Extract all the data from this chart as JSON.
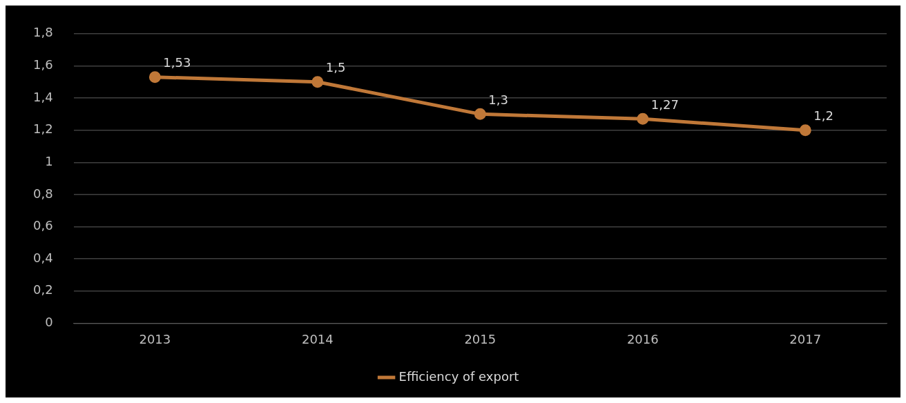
{
  "chart_data": {
    "type": "line",
    "categories": [
      "2013",
      "2014",
      "2015",
      "2016",
      "2017"
    ],
    "series": [
      {
        "name": "Efficiency of export",
        "color": "#c07838",
        "values": [
          1.53,
          1.5,
          1.3,
          1.27,
          1.2
        ],
        "value_labels": [
          "1,53",
          "1,5",
          "1,3",
          "1,27",
          "1,2"
        ]
      }
    ],
    "ylim": [
      0,
      1.8
    ],
    "yticks": [
      0,
      {
        "value": 0.2,
        "label": "0,2"
      },
      {
        "value": 0.4,
        "label": "0,4"
      },
      {
        "value": 0.6,
        "label": "0,6"
      },
      {
        "value": 0.8,
        "label": "0,8"
      },
      1,
      {
        "value": 1.2,
        "label": "1,2"
      },
      {
        "value": 1.4,
        "label": "1,4"
      },
      {
        "value": 1.6,
        "label": "1,6"
      },
      {
        "value": 1.8,
        "label": "1,8"
      }
    ],
    "grid": "y",
    "legend": "bottom",
    "marker": "circle",
    "line_style": "solid"
  }
}
